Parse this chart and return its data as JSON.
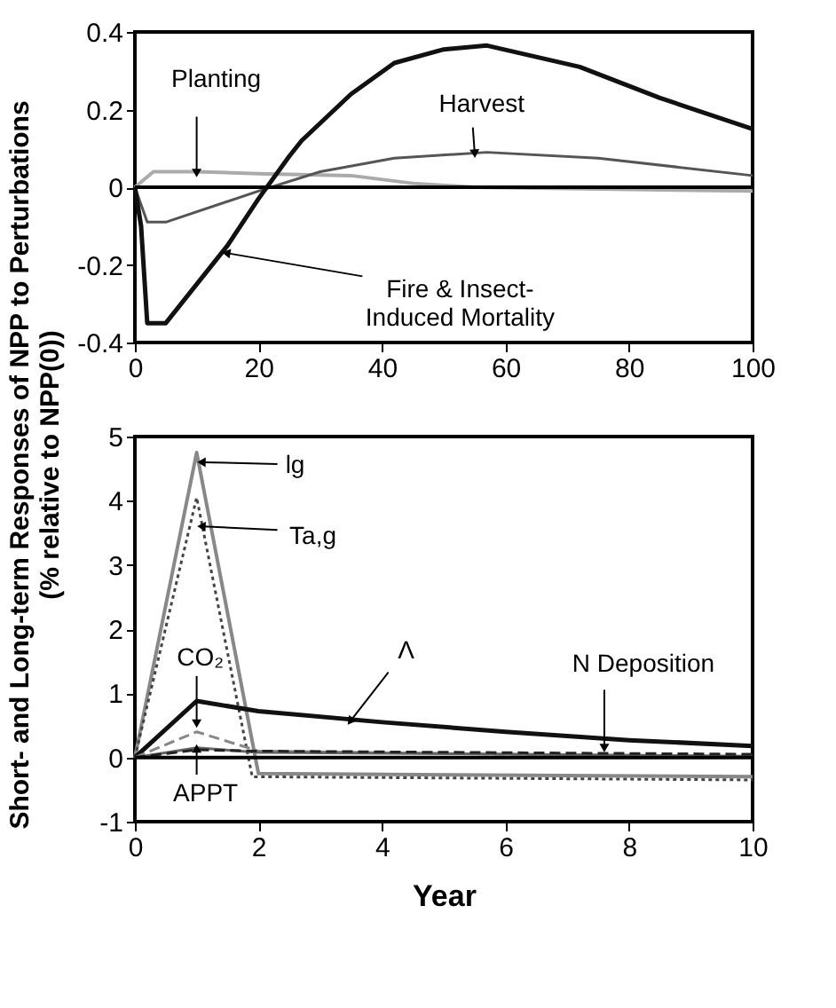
{
  "chart_data": [
    {
      "type": "line",
      "ylabel": "Short- and Long-term Responses of NPP to Perturbations\n(% relative to NPP(0))",
      "xlim": [
        0,
        100
      ],
      "xticks": [
        0,
        20,
        40,
        60,
        80,
        100
      ],
      "ylim": [
        -0.4,
        0.4
      ],
      "yticks": [
        -0.4,
        -0.2,
        0,
        0.2,
        0.4
      ],
      "grid": false,
      "series": [
        {
          "color": "#aaaaaa",
          "line_style": "solid",
          "x": [
            0,
            3,
            10,
            20,
            35,
            45,
            55,
            100
          ],
          "values": [
            0,
            0.04,
            0.04,
            0.035,
            0.03,
            0.01,
            0,
            -0.01
          ]
        },
        {
          "color": "#555555",
          "line_style": "solid",
          "x": [
            0,
            2,
            5,
            20,
            30,
            42,
            57,
            75,
            100
          ],
          "values": [
            0,
            -0.09,
            -0.09,
            -0.01,
            0.04,
            0.075,
            0.09,
            0.075,
            0.03
          ]
        },
        {
          "color": "#111111",
          "line_style": "solid",
          "x": [
            0,
            1,
            2,
            5,
            10,
            15,
            20,
            25,
            27,
            35,
            42,
            50,
            57,
            72,
            85,
            100
          ],
          "values": [
            0,
            -0.1,
            -0.35,
            -0.35,
            -0.25,
            -0.15,
            -0.03,
            0.08,
            0.12,
            0.24,
            0.32,
            0.355,
            0.365,
            0.31,
            0.23,
            0.15
          ]
        }
      ],
      "ref_lines": [
        {
          "axis": "y",
          "value": 0,
          "color": "#000000"
        }
      ],
      "annotations": [
        {
          "text": "Planting",
          "x": 10,
          "y": 0.04
        },
        {
          "text": "Harvest",
          "x": 55,
          "y": 0.09
        },
        {
          "text": "Fire & Insect-\nInduced Mortality",
          "x": 15,
          "y": -0.17
        }
      ]
    },
    {
      "type": "line",
      "xlabel": "Year",
      "xlim": [
        0,
        10
      ],
      "xticks": [
        0,
        2,
        4,
        6,
        8,
        10
      ],
      "ylim": [
        -1,
        5
      ],
      "yticks": [
        -1,
        0,
        1,
        2,
        3,
        4,
        5
      ],
      "grid": false,
      "series": [
        {
          "color": "#888888",
          "line_style": "solid",
          "x": [
            0,
            1,
            2,
            10
          ],
          "values": [
            0,
            4.75,
            -0.25,
            -0.3
          ]
        },
        {
          "color": "#444444",
          "line_style": "dotted",
          "x": [
            0,
            1,
            1.9,
            10
          ],
          "values": [
            0,
            4.05,
            -0.3,
            -0.35
          ]
        },
        {
          "color": "#111111",
          "line_style": "solid",
          "x": [
            0,
            1,
            2,
            4,
            6,
            8,
            10
          ],
          "values": [
            0,
            0.88,
            0.72,
            0.55,
            0.4,
            0.27,
            0.18
          ]
        },
        {
          "color": "#888888",
          "line_style": "dashed",
          "x": [
            0,
            1,
            2,
            10
          ],
          "values": [
            0,
            0.4,
            0.1,
            0
          ]
        },
        {
          "color": "#666666",
          "line_style": "solid",
          "x": [
            0,
            1,
            2,
            10
          ],
          "values": [
            0,
            0.15,
            0.08,
            0.02
          ]
        },
        {
          "color": "#222222",
          "line_style": "dashed",
          "x": [
            0,
            1,
            2,
            10
          ],
          "values": [
            0,
            0.12,
            0.1,
            0.05
          ]
        }
      ],
      "ref_lines": [
        {
          "axis": "y",
          "value": 0,
          "color": "#000000"
        }
      ],
      "annotations": [
        {
          "text": "lg",
          "x": 1.1,
          "y": 4.6
        },
        {
          "text": "Ta,g",
          "x": 1.1,
          "y": 3.6
        },
        {
          "text": "CO₂",
          "x": 1,
          "y": 0.55
        },
        {
          "text": "APPT",
          "x": 1,
          "y": 0.12
        },
        {
          "text": "Λ",
          "x": 3.5,
          "y": 0.58
        },
        {
          "text": "N Deposition",
          "x": 7.6,
          "y": 0.17
        }
      ]
    }
  ]
}
